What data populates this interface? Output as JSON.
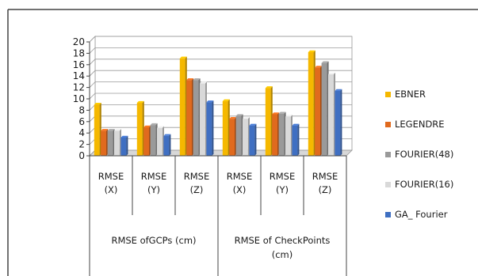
{
  "chart_data": {
    "type": "bar",
    "style": "3d-clustered-column",
    "categories": [
      "RMSE (X)",
      "RMSE (Y)",
      "RMSE (Z)",
      "RMSE (X)",
      "RMSE (Y)",
      "RMSE (Z)"
    ],
    "category_lines": [
      [
        "RMSE",
        "(X)"
      ],
      [
        "RMSE",
        "(Y)"
      ],
      [
        "RMSE",
        "(Z)"
      ],
      [
        "RMSE",
        "(X)"
      ],
      [
        "RMSE",
        "(Y)"
      ],
      [
        "RMSE",
        "(Z)"
      ]
    ],
    "groups": [
      {
        "label_lines": [
          "RMSE ofGCPs (cm)"
        ],
        "categories": [
          0,
          1,
          2
        ]
      },
      {
        "label_lines": [
          "RMSE of CheckPoints",
          "(cm)"
        ],
        "categories": [
          3,
          4,
          5
        ]
      }
    ],
    "series": [
      {
        "name": "EBNER",
        "color": "#f5b800",
        "values": [
          9.0,
          9.3,
          17.1,
          9.6,
          11.9,
          18.2
        ]
      },
      {
        "name": "LEGENDRE",
        "color": "#e06a1e",
        "values": [
          4.4,
          5.0,
          13.3,
          6.5,
          7.3,
          15.5
        ]
      },
      {
        "name": "FOURIER(48)",
        "color": "#9a9a9a",
        "values": [
          4.4,
          5.4,
          13.3,
          7.0,
          7.4,
          16.3
        ]
      },
      {
        "name": "FOURIER(16)",
        "color": "#d9d9d9",
        "values": [
          4.4,
          4.9,
          12.7,
          6.5,
          6.9,
          14.3
        ]
      },
      {
        "name": "GA_ Fourier",
        "color": "#3f6fc2",
        "values": [
          3.2,
          3.5,
          9.4,
          5.3,
          5.3,
          11.4
        ]
      }
    ],
    "ylim": [
      0,
      20
    ],
    "yticks": [
      0,
      2,
      4,
      6,
      8,
      10,
      12,
      14,
      16,
      18,
      20
    ],
    "grid": true,
    "legend_position": "right",
    "title": "",
    "xlabel": "",
    "ylabel": ""
  }
}
